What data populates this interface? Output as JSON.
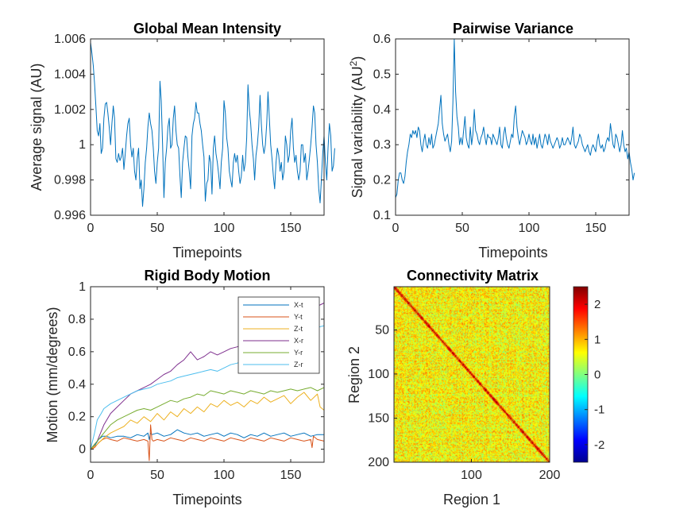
{
  "chart_data": [
    {
      "type": "line",
      "title": "Global Mean Intensity",
      "xlabel": "Timepoints",
      "ylabel": "Average signal (AU)",
      "xlim": [
        0,
        175
      ],
      "ylim": [
        0.996,
        1.006
      ],
      "xticks": [
        0,
        50,
        100,
        150
      ],
      "yticks": [
        0.996,
        0.998,
        1,
        1.002,
        1.004,
        1.006
      ],
      "ytick_labels": [
        "0.996",
        "0.998",
        "1",
        "1.002",
        "1.004",
        "1.006"
      ],
      "series_color": "#0072bd",
      "series": [
        {
          "values": [
            1.0058,
            1.0052,
            1.0045,
            1.0035,
            1.0022,
            1.0008,
            1.0005,
            1.0012,
            0.9995,
            0.9998,
            1.0015,
            1.0023,
            1.0024,
            1.0018,
            1.001,
            1.0,
            1.0012,
            1.0022,
            1.0015,
            0.9992,
            0.999,
            0.9995,
            0.9991,
            0.9993,
            0.9998,
            0.9986,
            0.9995,
            1.0005,
            1.0012,
            1.0015,
            1.0,
            0.9993,
            0.9998,
            0.9985,
            0.998,
            0.9992,
            0.9998,
            0.9975,
            0.998,
            0.9965,
            0.9975,
            0.999,
            0.9998,
            1.001,
            1.0018,
            1.0012,
            1.0008,
            0.9998,
            0.9985,
            0.9978,
            0.999,
            0.9998,
            1.0036,
            1.0025,
            1.0,
            0.997,
            0.999,
            0.9998,
            1.001,
            1.0015,
            0.9998,
            1.0,
            1.0015,
            1.0022,
            1.0008,
            1.0,
            0.9998,
            0.9982,
            0.997,
            0.999,
            0.9998,
            1.0005,
            1.0004,
            0.9993,
            0.9985,
            0.9975,
            1.0005,
            1.0012,
            1.0015,
            1.0024,
            1.0018,
            1.0018,
            1.0012,
            1.0008,
            1.0,
            0.9993,
            0.9968,
            0.9978,
            0.998,
            0.9994,
            0.999,
            0.9972,
            0.9998,
            1.0005,
            0.9995,
            0.999,
            0.9983,
            0.9975,
            0.999,
            0.9998,
            1.0025,
            1.0018,
            1.0004,
            0.9998,
            0.9985,
            0.998,
            0.9976,
            0.999,
            0.9995,
            0.999,
            0.9994,
            0.9985,
            0.9978,
            0.9982,
            0.9994,
            0.9985,
            0.999,
            1.0004,
            1.0034,
            1.002,
            1.0012,
            1.0,
            0.9992,
            0.998,
            0.9994,
            1.0,
            1.001,
            1.0028,
            1.0012,
            1.0,
            0.9995,
            1.0,
            1.0012,
            1.003,
            1.0015,
            1.0,
            0.9992,
            0.9982,
            0.9975,
            0.999,
            0.9998,
            0.9994,
            0.9985,
            0.999,
            0.998,
            0.9985,
            1.0005,
            1.0,
            0.999,
            0.9994,
            1.0008,
            1.0015,
            0.9998,
            0.999,
            0.9994,
            0.9985,
            0.998,
            0.9985,
            1.0,
            1.0,
            0.999,
            0.9995,
            0.998,
            0.9985,
            0.9992,
            1.0,
            1.001,
            1.0022,
            1.0018,
            1.0,
            0.999,
            0.9975,
            0.9967,
            0.998,
            0.9995,
            1.0005,
            0.999,
            0.998,
            0.9998,
            1.0012,
            1.0005,
            0.9985,
            0.9988,
            0.9998
          ]
        }
      ]
    },
    {
      "type": "line",
      "title": "Pairwise Variance",
      "xlabel": "Timepoints",
      "ylabel": "Signal variability (AU",
      "ylabel_sup": "2",
      "ylabel_end": ")",
      "xlim": [
        0,
        175
      ],
      "ylim": [
        0.1,
        0.6
      ],
      "xticks": [
        0,
        50,
        100,
        150
      ],
      "yticks": [
        0.1,
        0.2,
        0.3,
        0.4,
        0.5,
        0.6
      ],
      "ytick_labels": [
        "0.1",
        "0.2",
        "0.3",
        "0.4",
        "0.5",
        "0.6"
      ],
      "series_color": "#0072bd",
      "series": [
        {
          "values": [
            0.15,
            0.16,
            0.2,
            0.22,
            0.22,
            0.2,
            0.19,
            0.21,
            0.25,
            0.28,
            0.3,
            0.33,
            0.32,
            0.34,
            0.33,
            0.34,
            0.32,
            0.35,
            0.34,
            0.3,
            0.28,
            0.31,
            0.33,
            0.3,
            0.29,
            0.32,
            0.3,
            0.33,
            0.29,
            0.3,
            0.32,
            0.34,
            0.36,
            0.4,
            0.44,
            0.36,
            0.33,
            0.31,
            0.32,
            0.33,
            0.3,
            0.28,
            0.31,
            0.42,
            0.6,
            0.45,
            0.38,
            0.35,
            0.3,
            0.32,
            0.3,
            0.34,
            0.38,
            0.32,
            0.3,
            0.29,
            0.35,
            0.3,
            0.33,
            0.4,
            0.34,
            0.33,
            0.31,
            0.3,
            0.32,
            0.33,
            0.35,
            0.32,
            0.3,
            0.33,
            0.32,
            0.32,
            0.3,
            0.33,
            0.32,
            0.31,
            0.3,
            0.32,
            0.35,
            0.3,
            0.29,
            0.33,
            0.35,
            0.32,
            0.3,
            0.29,
            0.31,
            0.33,
            0.32,
            0.38,
            0.41,
            0.35,
            0.32,
            0.3,
            0.32,
            0.34,
            0.33,
            0.32,
            0.3,
            0.31,
            0.33,
            0.31,
            0.3,
            0.33,
            0.3,
            0.32,
            0.29,
            0.31,
            0.33,
            0.3,
            0.29,
            0.31,
            0.33,
            0.32,
            0.3,
            0.33,
            0.31,
            0.3,
            0.29,
            0.3,
            0.31,
            0.32,
            0.31,
            0.29,
            0.3,
            0.32,
            0.3,
            0.3,
            0.31,
            0.32,
            0.31,
            0.3,
            0.32,
            0.35,
            0.3,
            0.29,
            0.3,
            0.31,
            0.33,
            0.32,
            0.3,
            0.29,
            0.28,
            0.29,
            0.3,
            0.28,
            0.27,
            0.29,
            0.3,
            0.29,
            0.28,
            0.31,
            0.33,
            0.3,
            0.29,
            0.3,
            0.28,
            0.29,
            0.31,
            0.32,
            0.31,
            0.36,
            0.33,
            0.3,
            0.29,
            0.33,
            0.32,
            0.3,
            0.28,
            0.3,
            0.34,
            0.3,
            0.28,
            0.29,
            0.26,
            0.28,
            0.25,
            0.23,
            0.2,
            0.22
          ]
        }
      ]
    },
    {
      "type": "line",
      "title": "Rigid Body Motion",
      "xlabel": "Timepoints",
      "ylabel": "Motion (mm/degrees)",
      "xlim": [
        0,
        175
      ],
      "ylim": [
        -0.08,
        1
      ],
      "xticks": [
        0,
        50,
        100,
        150
      ],
      "yticks": [
        0,
        0.2,
        0.4,
        0.6,
        0.8,
        1
      ],
      "ytick_labels": [
        "0",
        "0.2",
        "0.4",
        "0.6",
        "0.8",
        "1"
      ],
      "legend": "top-right",
      "series": [
        {
          "name": "X-t",
          "color": "#0072bd",
          "x": [
            0,
            3,
            6,
            9,
            12,
            15,
            20,
            25,
            30,
            35,
            40,
            43,
            44,
            45,
            46,
            50,
            55,
            60,
            65,
            70,
            75,
            80,
            85,
            90,
            95,
            100,
            105,
            110,
            115,
            120,
            125,
            130,
            135,
            140,
            145,
            150,
            155,
            160,
            165,
            170,
            175
          ],
          "values": [
            0,
            0.02,
            0.06,
            0.08,
            0.08,
            0.07,
            0.08,
            0.08,
            0.07,
            0.09,
            0.08,
            0.1,
            0.06,
            0.1,
            0.09,
            0.1,
            0.08,
            0.09,
            0.12,
            0.1,
            0.09,
            0.1,
            0.08,
            0.09,
            0.1,
            0.08,
            0.1,
            0.09,
            0.07,
            0.09,
            0.08,
            0.1,
            0.08,
            0.09,
            0.1,
            0.08,
            0.09,
            0.1,
            0.08,
            0.09,
            0.09
          ]
        },
        {
          "name": "Y-t",
          "color": "#d95319",
          "x": [
            0,
            3,
            6,
            9,
            12,
            15,
            20,
            25,
            30,
            35,
            40,
            43,
            44,
            45,
            46,
            47,
            50,
            55,
            60,
            65,
            70,
            75,
            80,
            85,
            90,
            95,
            100,
            105,
            110,
            115,
            120,
            125,
            130,
            135,
            140,
            145,
            150,
            155,
            160,
            165,
            166,
            167,
            170,
            175
          ],
          "values": [
            0,
            0.01,
            0.04,
            0.06,
            0.07,
            0.06,
            0.05,
            0.07,
            0.06,
            0.05,
            0.06,
            0.05,
            -0.07,
            0.15,
            0.06,
            0.05,
            0.06,
            0.05,
            0.07,
            0.06,
            0.05,
            0.07,
            0.06,
            0.05,
            0.07,
            0.06,
            0.05,
            0.07,
            0.06,
            0.05,
            0.07,
            0.06,
            0.05,
            0.07,
            0.06,
            0.05,
            0.07,
            0.06,
            0.05,
            0.06,
            0.01,
            0.08,
            0.06,
            0.05
          ]
        },
        {
          "name": "Z-t",
          "color": "#edb120",
          "x": [
            0,
            5,
            10,
            15,
            20,
            25,
            30,
            35,
            40,
            45,
            50,
            55,
            60,
            65,
            70,
            75,
            80,
            85,
            90,
            95,
            100,
            105,
            110,
            115,
            120,
            125,
            130,
            135,
            140,
            145,
            150,
            155,
            160,
            165,
            170,
            172,
            175
          ],
          "values": [
            0,
            0.03,
            0.07,
            0.1,
            0.12,
            0.14,
            0.18,
            0.16,
            0.2,
            0.17,
            0.22,
            0.18,
            0.23,
            0.2,
            0.25,
            0.22,
            0.26,
            0.23,
            0.28,
            0.26,
            0.3,
            0.27,
            0.29,
            0.26,
            0.3,
            0.28,
            0.32,
            0.29,
            0.31,
            0.33,
            0.28,
            0.32,
            0.35,
            0.3,
            0.34,
            0.26,
            0.24
          ]
        },
        {
          "name": "X-r",
          "color": "#7e2f8e",
          "x": [
            0,
            5,
            10,
            15,
            20,
            25,
            30,
            35,
            40,
            45,
            50,
            55,
            60,
            65,
            70,
            75,
            80,
            85,
            90,
            95,
            100,
            105,
            110,
            115,
            120,
            125,
            130,
            135,
            140,
            145,
            150,
            155,
            160,
            165,
            170,
            175
          ],
          "values": [
            0,
            0.05,
            0.15,
            0.22,
            0.26,
            0.3,
            0.34,
            0.36,
            0.38,
            0.4,
            0.43,
            0.46,
            0.48,
            0.52,
            0.55,
            0.6,
            0.55,
            0.57,
            0.6,
            0.58,
            0.6,
            0.62,
            0.63,
            0.65,
            0.66,
            0.68,
            0.7,
            0.72,
            0.74,
            0.76,
            0.78,
            0.8,
            0.82,
            0.84,
            0.88,
            0.9
          ]
        },
        {
          "name": "Y-r",
          "color": "#77ac30",
          "x": [
            0,
            5,
            10,
            15,
            20,
            25,
            30,
            35,
            40,
            45,
            50,
            55,
            60,
            65,
            70,
            75,
            80,
            85,
            90,
            95,
            100,
            105,
            110,
            115,
            120,
            125,
            130,
            135,
            140,
            145,
            150,
            155,
            160,
            165,
            170,
            175
          ],
          "values": [
            0,
            0.05,
            0.1,
            0.15,
            0.18,
            0.2,
            0.22,
            0.24,
            0.25,
            0.24,
            0.26,
            0.28,
            0.3,
            0.29,
            0.31,
            0.32,
            0.34,
            0.33,
            0.36,
            0.35,
            0.34,
            0.36,
            0.35,
            0.34,
            0.36,
            0.35,
            0.34,
            0.36,
            0.35,
            0.36,
            0.37,
            0.36,
            0.37,
            0.38,
            0.36,
            0.38
          ]
        },
        {
          "name": "Z-r",
          "color": "#4dbeee",
          "x": [
            0,
            3,
            5,
            8,
            10,
            15,
            20,
            25,
            30,
            35,
            40,
            45,
            50,
            55,
            60,
            65,
            70,
            75,
            80,
            85,
            90,
            95,
            100,
            105,
            110,
            115,
            120,
            125,
            130,
            135,
            140,
            145,
            150,
            155,
            160,
            165,
            170,
            175
          ],
          "values": [
            0,
            0.1,
            0.18,
            0.22,
            0.25,
            0.28,
            0.3,
            0.32,
            0.34,
            0.36,
            0.37,
            0.38,
            0.4,
            0.41,
            0.42,
            0.44,
            0.45,
            0.46,
            0.47,
            0.48,
            0.49,
            0.48,
            0.5,
            0.52,
            0.53,
            0.55,
            0.56,
            0.58,
            0.6,
            0.62,
            0.64,
            0.65,
            0.66,
            0.68,
            0.7,
            0.72,
            0.75,
            0.76
          ]
        }
      ]
    },
    {
      "type": "heatmap",
      "title": "Connectivity Matrix",
      "xlabel": "Region 1",
      "ylabel": "Region 2",
      "size": 200,
      "xlim": [
        1,
        200
      ],
      "ylim": [
        1,
        200
      ],
      "xticks": [
        100,
        200
      ],
      "yticks": [
        50,
        100,
        150,
        200
      ],
      "colorbar_range": [
        -2.5,
        2.5
      ],
      "colorbar_ticks": [
        -2,
        -1,
        0,
        1,
        2
      ],
      "colorbar_labels": [
        "-2",
        "-1",
        "0",
        "1",
        "2"
      ],
      "colormap": "jet",
      "diagonal_value": 2.5,
      "typical_offdiagonal_range": [
        -0.3,
        1.2
      ]
    }
  ]
}
